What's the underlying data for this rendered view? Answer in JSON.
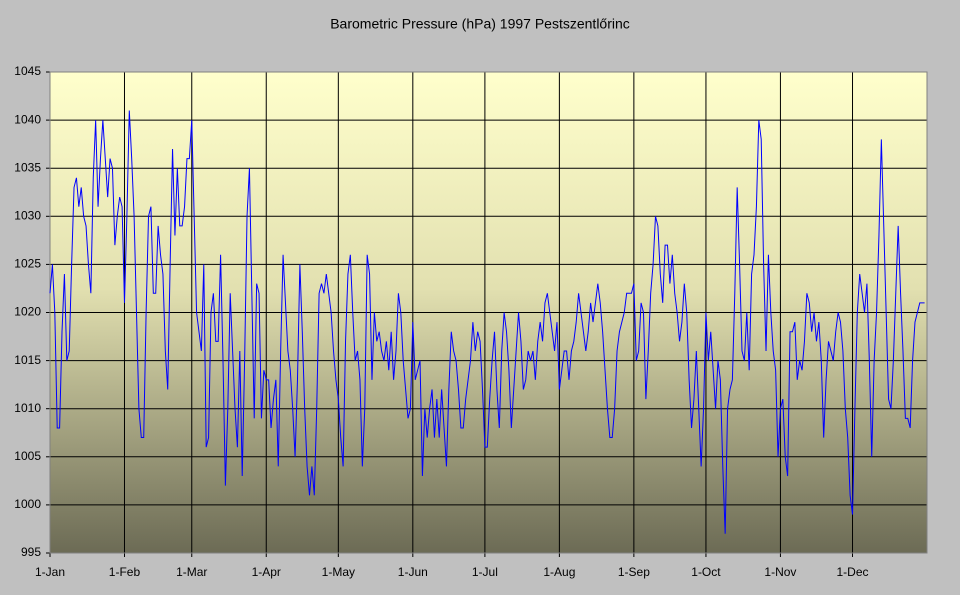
{
  "chart_data": {
    "type": "line",
    "title": "Barometric Pressure (hPa) 1997 Pestszentlőrinc",
    "categories": [
      "1-Jan",
      null,
      null,
      null,
      null,
      null,
      null,
      null,
      null,
      null,
      null,
      null,
      null,
      null,
      null,
      null,
      null,
      null,
      null,
      null,
      null,
      null,
      null,
      null,
      null,
      null,
      null,
      null,
      null,
      null,
      null,
      "1-Feb",
      null,
      null,
      null,
      null,
      null,
      null,
      null,
      null,
      null,
      null,
      null,
      null,
      null,
      null,
      null,
      null,
      null,
      null,
      null,
      null,
      null,
      null,
      null,
      null,
      null,
      null,
      null,
      "1-Mar",
      null,
      null,
      null,
      null,
      null,
      null,
      null,
      null,
      null,
      null,
      null,
      null,
      null,
      null,
      null,
      null,
      null,
      null,
      null,
      null,
      null,
      null,
      null,
      null,
      null,
      null,
      null,
      null,
      null,
      null,
      "1-Apr",
      null,
      null,
      null,
      null,
      null,
      null,
      null,
      null,
      null,
      null,
      null,
      null,
      null,
      null,
      null,
      null,
      null,
      null,
      null,
      null,
      null,
      null,
      null,
      null,
      null,
      null,
      null,
      null,
      null,
      "1-May",
      null,
      null,
      null,
      null,
      null,
      null,
      null,
      null,
      null,
      null,
      null,
      null,
      null,
      null,
      null,
      null,
      null,
      null,
      null,
      null,
      null,
      null,
      null,
      null,
      null,
      null,
      null,
      null,
      null,
      null,
      "1-Jun",
      null,
      null,
      null,
      null,
      null,
      null,
      null,
      null,
      null,
      null,
      null,
      null,
      null,
      null,
      null,
      null,
      null,
      null,
      null,
      null,
      null,
      null,
      null,
      null,
      null,
      null,
      null,
      null,
      null,
      "1-Jul",
      null,
      null,
      null,
      null,
      null,
      null,
      null,
      null,
      null,
      null,
      null,
      null,
      null,
      null,
      null,
      null,
      null,
      null,
      null,
      null,
      null,
      null,
      null,
      null,
      null,
      null,
      null,
      null,
      null,
      null,
      "1-Aug",
      null,
      null,
      null,
      null,
      null,
      null,
      null,
      null,
      null,
      null,
      null,
      null,
      null,
      null,
      null,
      null,
      null,
      null,
      null,
      null,
      null,
      null,
      null,
      null,
      null,
      null,
      null,
      null,
      null,
      null,
      "1-Sep",
      null,
      null,
      null,
      null,
      null,
      null,
      null,
      null,
      null,
      null,
      null,
      null,
      null,
      null,
      null,
      null,
      null,
      null,
      null,
      null,
      null,
      null,
      null,
      null,
      null,
      null,
      null,
      null,
      null,
      "1-Oct",
      null,
      null,
      null,
      null,
      null,
      null,
      null,
      null,
      null,
      null,
      null,
      null,
      null,
      null,
      null,
      null,
      null,
      null,
      null,
      null,
      null,
      null,
      null,
      null,
      null,
      null,
      null,
      null,
      null,
      null,
      "1-Nov",
      null,
      null,
      null,
      null,
      null,
      null,
      null,
      null,
      null,
      null,
      null,
      null,
      null,
      null,
      null,
      null,
      null,
      null,
      null,
      null,
      null,
      null,
      null,
      null,
      null,
      null,
      null,
      null,
      null,
      "1-Dec",
      null,
      null,
      null,
      null,
      null,
      null,
      null,
      null,
      null,
      null,
      null,
      null,
      null,
      null,
      null,
      null,
      null,
      null,
      null,
      null,
      null,
      null,
      null,
      null,
      null,
      null,
      null,
      null,
      null,
      null
    ],
    "series": [
      {
        "name": "Barometric Pressure",
        "color": "#0000ff",
        "values": [
          1022,
          1025,
          1020,
          1008,
          1008,
          1018,
          1024,
          1015,
          1016,
          1025,
          1033,
          1034,
          1031,
          1033,
          1030,
          1029,
          1025,
          1022,
          1034,
          1040,
          1031,
          1036,
          1040,
          1036,
          1032,
          1036,
          1035,
          1027,
          1030,
          1032,
          1031,
          1021,
          1030,
          1041,
          1036,
          1030,
          1020,
          1010,
          1007,
          1007,
          1020,
          1030,
          1031,
          1022,
          1022,
          1029,
          1026,
          1024,
          1016,
          1012,
          1025,
          1037,
          1028,
          1035,
          1029,
          1029,
          1031,
          1036,
          1036,
          1040,
          1030,
          1020,
          1018,
          1016,
          1025,
          1006,
          1007,
          1020,
          1022,
          1017,
          1017,
          1026,
          1015,
          1002,
          1010,
          1022,
          1016,
          1010,
          1006,
          1016,
          1003,
          1015,
          1030,
          1035,
          1022,
          1009,
          1023,
          1022,
          1009,
          1014,
          1013,
          1013,
          1008,
          1011,
          1013,
          1004,
          1016,
          1026,
          1021,
          1016,
          1014,
          1010,
          1005,
          1013,
          1025,
          1018,
          1010,
          1004,
          1001,
          1004,
          1001,
          1010,
          1022,
          1023,
          1022,
          1024,
          1022,
          1020,
          1016,
          1013,
          1011,
          1007,
          1004,
          1017,
          1024,
          1026,
          1020,
          1015,
          1016,
          1013,
          1004,
          1010,
          1026,
          1024,
          1013,
          1020,
          1017,
          1018,
          1016,
          1015,
          1017,
          1014,
          1018,
          1013,
          1016,
          1022,
          1020,
          1015,
          1012,
          1009,
          1010,
          1019,
          1013,
          1014,
          1015,
          1003,
          1010,
          1007,
          1010,
          1012,
          1007,
          1011,
          1007,
          1012,
          1008,
          1004,
          1012,
          1018,
          1016,
          1015,
          1012,
          1008,
          1008,
          1011,
          1013,
          1015,
          1019,
          1016,
          1018,
          1017,
          1012,
          1006,
          1006,
          1011,
          1015,
          1018,
          1012,
          1008,
          1016,
          1020,
          1018,
          1014,
          1008,
          1012,
          1016,
          1020,
          1017,
          1012,
          1013,
          1016,
          1015,
          1016,
          1013,
          1017,
          1019,
          1017,
          1021,
          1022,
          1020,
          1018,
          1016,
          1019,
          1012,
          1014,
          1016,
          1016,
          1013,
          1016,
          1017,
          1019,
          1022,
          1020,
          1018,
          1016,
          1018,
          1021,
          1019,
          1021,
          1023,
          1021,
          1018,
          1014,
          1010,
          1007,
          1007,
          1010,
          1016,
          1018,
          1019,
          1020,
          1022,
          1022,
          1022,
          1023,
          1015,
          1016,
          1021,
          1020,
          1011,
          1016,
          1022,
          1025,
          1030,
          1029,
          1024,
          1021,
          1027,
          1027,
          1023,
          1026,
          1022,
          1020,
          1017,
          1019,
          1023,
          1020,
          1013,
          1008,
          1011,
          1016,
          1010,
          1004,
          1010,
          1020,
          1015,
          1018,
          1014,
          1010,
          1015,
          1013,
          1004,
          997,
          1010,
          1012,
          1013,
          1022,
          1033,
          1025,
          1016,
          1015,
          1020,
          1014,
          1024,
          1026,
          1031,
          1040,
          1038,
          1025,
          1016,
          1026,
          1020,
          1016,
          1014,
          1005,
          1010,
          1011,
          1005,
          1003,
          1018,
          1018,
          1019,
          1013,
          1015,
          1014,
          1017,
          1022,
          1021,
          1018,
          1020,
          1017,
          1019,
          1015,
          1007,
          1013,
          1017,
          1016,
          1015,
          1018,
          1020,
          1019,
          1016,
          1010,
          1007,
          1001,
          999,
          1010,
          1020,
          1024,
          1022,
          1020,
          1023,
          1015,
          1005,
          1015,
          1020,
          1028,
          1038,
          1029,
          1020,
          1011,
          1010,
          1015,
          1022,
          1029,
          1022,
          1016,
          1009,
          1009,
          1008,
          1015,
          1019,
          1020,
          1021,
          1021,
          1021
        ]
      }
    ],
    "ylim": [
      995,
      1045
    ],
    "yticks": [
      995,
      1000,
      1005,
      1010,
      1015,
      1020,
      1025,
      1030,
      1035,
      1040,
      1045
    ],
    "grid": true
  }
}
